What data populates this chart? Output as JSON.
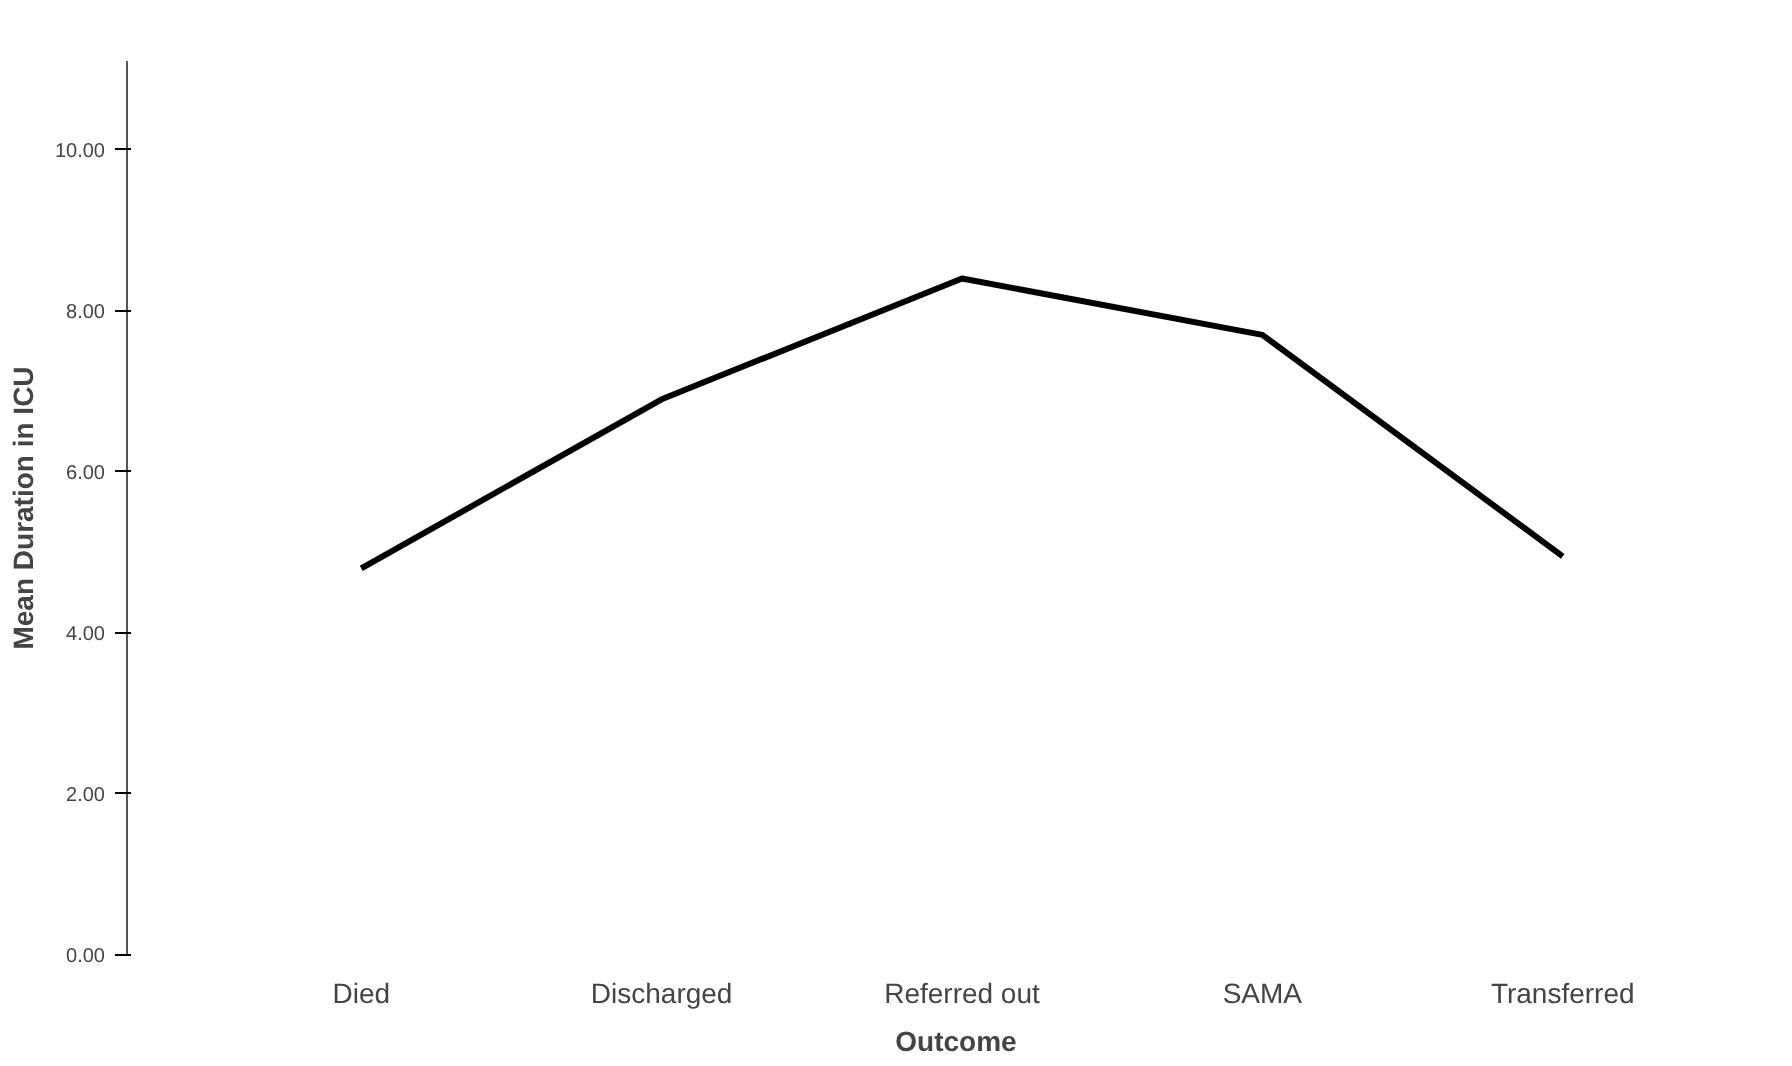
{
  "chart_data": {
    "type": "line",
    "xlabel": "Outcome",
    "ylabel": "Mean Duration in ICU",
    "categories": [
      "Died",
      "Discharged",
      "Referred out",
      "SAMA",
      "Transferred"
    ],
    "series": [
      {
        "color": "#000000",
        "values": [
          4.8,
          6.9,
          8.4,
          7.7,
          4.95
        ]
      }
    ],
    "ylim": [
      0,
      11.1
    ],
    "yticks": [
      {
        "value": 0,
        "label": "0.00"
      },
      {
        "value": 2,
        "label": "2.00"
      },
      {
        "value": 4,
        "label": "4.00"
      },
      {
        "value": 6,
        "label": "6.00"
      },
      {
        "value": 8,
        "label": "8.00"
      },
      {
        "value": 10,
        "label": "10.00"
      }
    ],
    "grid": false,
    "marker": "none",
    "line_style": "solid"
  }
}
